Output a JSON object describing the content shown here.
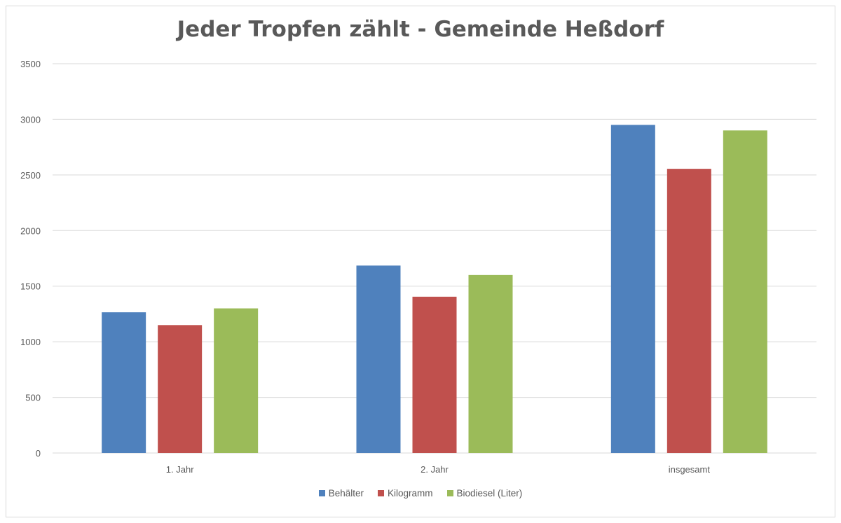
{
  "chart_data": {
    "type": "bar",
    "title": "Jeder Tropfen zählt - Gemeinde Heßdorf",
    "categories": [
      "1. Jahr",
      "2. Jahr",
      "insgesamt"
    ],
    "series": [
      {
        "name": "Behälter",
        "color": "#4f81bd",
        "values": [
          1265,
          1685,
          2950
        ]
      },
      {
        "name": "Kilogramm",
        "color": "#c0504d",
        "values": [
          1150,
          1405,
          2555
        ]
      },
      {
        "name": "Biodiesel (Liter)",
        "color": "#9bbb59",
        "values": [
          1300,
          1600,
          2900
        ]
      }
    ],
    "ylim": [
      0,
      3500
    ],
    "yticks": [
      0,
      500,
      1000,
      1500,
      2000,
      2500,
      3000,
      3500
    ],
    "grid": true,
    "legend": "bottom"
  }
}
